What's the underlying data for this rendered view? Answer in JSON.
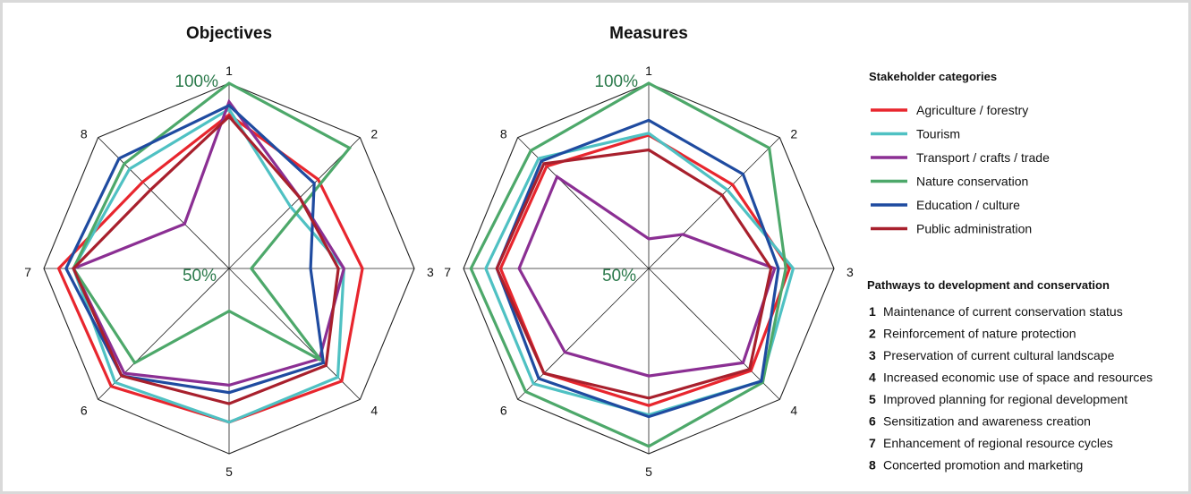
{
  "colors": {
    "label_green": "#2b7a4b",
    "grid": "#222222"
  },
  "legend": {
    "stakeholder_heading": "Stakeholder categories",
    "pathways_heading": "Pathways to development and conservation",
    "pathways": [
      {
        "num": "1",
        "label": "Maintenance of current conservation status"
      },
      {
        "num": "2",
        "label": "Reinforcement of nature protection"
      },
      {
        "num": "3",
        "label": "Preservation of current cultural landscape"
      },
      {
        "num": "4",
        "label": "Increased economic use of space and resources"
      },
      {
        "num": "5",
        "label": "Improved planning for regional development"
      },
      {
        "num": "6",
        "label": "Sensitization and awareness creation"
      },
      {
        "num": "7",
        "label": "Enhancement of regional resource cycles"
      },
      {
        "num": "8",
        "label": "Concerted promotion and marketing"
      }
    ]
  },
  "chart_data": [
    {
      "type": "radar",
      "title": "Objectives",
      "axes": [
        "1",
        "2",
        "3",
        "4",
        "5",
        "6",
        "7",
        "8"
      ],
      "range": [
        50,
        100
      ],
      "ring_labels": [
        "100%",
        "50%"
      ],
      "series": [
        {
          "name": "Agriculture / forestry",
          "color": "#e8262e",
          "values": [
            91.5,
            84,
            86,
            93,
            91.5,
            95,
            96,
            83
          ]
        },
        {
          "name": "Tourism",
          "color": "#4fc1c3",
          "values": [
            93,
            73.5,
            81,
            91.5,
            91.5,
            93.5,
            92,
            88
          ]
        },
        {
          "name": "Transport / crafts / trade",
          "color": "#8b2f93",
          "values": [
            95,
            77,
            81,
            84.5,
            81.5,
            90,
            92,
            67
          ]
        },
        {
          "name": "Nature conservation",
          "color": "#4da86a",
          "values": [
            100,
            96,
            56,
            85,
            61.5,
            86,
            92,
            90
          ]
        },
        {
          "name": "Education / culture",
          "color": "#1f4ba0",
          "values": [
            94,
            82.5,
            72,
            86,
            83.5,
            91,
            94,
            92
          ]
        },
        {
          "name": "Public administration",
          "color": "#a8202d",
          "values": [
            91,
            77,
            79.5,
            87,
            86.5,
            91,
            92,
            80
          ]
        }
      ]
    },
    {
      "type": "radar",
      "title": "Measures",
      "axes": [
        "1",
        "2",
        "3",
        "4",
        "5",
        "6",
        "7",
        "8"
      ],
      "range": [
        50,
        100
      ],
      "ring_labels": [
        "100%",
        "50%"
      ],
      "series": [
        {
          "name": "Agriculture / forestry",
          "color": "#e8262e",
          "values": [
            86,
            82,
            88,
            89,
            87,
            90,
            90,
            89
          ]
        },
        {
          "name": "Tourism",
          "color": "#4fc1c3",
          "values": [
            86.5,
            80,
            89,
            93,
            89.5,
            94,
            94,
            92
          ]
        },
        {
          "name": "Transport / crafts / trade",
          "color": "#8b2f93",
          "values": [
            58,
            63,
            84,
            86,
            79,
            82,
            85,
            85
          ]
        },
        {
          "name": "Nature conservation",
          "color": "#4da86a",
          "values": [
            100,
            96,
            87,
            93.5,
            98,
            97,
            98,
            95
          ]
        },
        {
          "name": "Education / culture",
          "color": "#1f4ba0",
          "values": [
            90,
            86,
            85,
            93,
            90,
            92,
            91,
            91
          ]
        },
        {
          "name": "Public administration",
          "color": "#a8202d",
          "values": [
            82,
            78,
            83,
            88.5,
            85,
            90,
            91,
            90
          ]
        }
      ]
    }
  ]
}
